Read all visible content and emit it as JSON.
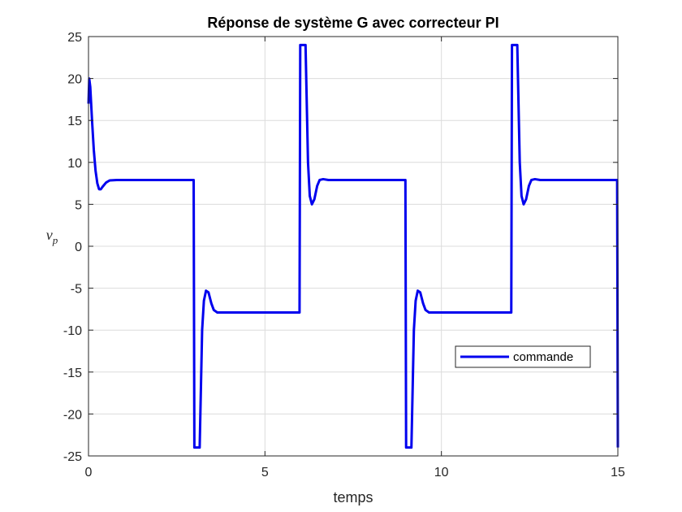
{
  "chart_data": {
    "type": "line",
    "title": "Réponse de système G avec correcteur PI",
    "xlabel": "temps",
    "ylabel_main": "v",
    "ylabel_sub": "p",
    "xlim": [
      0,
      15
    ],
    "ylim": [
      -25,
      25
    ],
    "x_ticks": [
      0,
      5,
      10,
      15
    ],
    "y_ticks": [
      -25,
      -20,
      -15,
      -10,
      -5,
      0,
      5,
      10,
      15,
      20,
      25
    ],
    "grid": true,
    "legend_position": "lower-right",
    "series": [
      {
        "name": "commande",
        "color": "#0000ee",
        "points": [
          [
            0.0,
            17.0
          ],
          [
            0.02,
            20.0
          ],
          [
            0.05,
            19.0
          ],
          [
            0.1,
            15.0
          ],
          [
            0.15,
            11.5
          ],
          [
            0.2,
            9.0
          ],
          [
            0.25,
            7.5
          ],
          [
            0.3,
            6.8
          ],
          [
            0.35,
            6.8
          ],
          [
            0.4,
            7.1
          ],
          [
            0.5,
            7.6
          ],
          [
            0.6,
            7.85
          ],
          [
            0.8,
            7.9
          ],
          [
            1.5,
            7.9
          ],
          [
            2.98,
            7.9
          ],
          [
            3.0,
            -24.0
          ],
          [
            3.15,
            -24.0
          ],
          [
            3.18,
            -18.0
          ],
          [
            3.22,
            -10.0
          ],
          [
            3.27,
            -6.5
          ],
          [
            3.33,
            -5.3
          ],
          [
            3.4,
            -5.5
          ],
          [
            3.48,
            -6.8
          ],
          [
            3.55,
            -7.6
          ],
          [
            3.65,
            -7.9
          ],
          [
            3.8,
            -7.9
          ],
          [
            5.98,
            -7.9
          ],
          [
            6.0,
            24.0
          ],
          [
            6.15,
            24.0
          ],
          [
            6.18,
            18.0
          ],
          [
            6.22,
            10.0
          ],
          [
            6.27,
            6.0
          ],
          [
            6.33,
            5.0
          ],
          [
            6.4,
            5.6
          ],
          [
            6.48,
            7.2
          ],
          [
            6.55,
            7.9
          ],
          [
            6.65,
            8.0
          ],
          [
            6.8,
            7.9
          ],
          [
            8.98,
            7.9
          ],
          [
            9.0,
            -24.0
          ],
          [
            9.15,
            -24.0
          ],
          [
            9.18,
            -18.0
          ],
          [
            9.22,
            -10.0
          ],
          [
            9.27,
            -6.5
          ],
          [
            9.33,
            -5.3
          ],
          [
            9.4,
            -5.5
          ],
          [
            9.48,
            -6.8
          ],
          [
            9.55,
            -7.6
          ],
          [
            9.65,
            -7.9
          ],
          [
            9.8,
            -7.9
          ],
          [
            11.98,
            -7.9
          ],
          [
            12.0,
            24.0
          ],
          [
            12.15,
            24.0
          ],
          [
            12.18,
            18.0
          ],
          [
            12.22,
            10.0
          ],
          [
            12.27,
            6.0
          ],
          [
            12.33,
            5.0
          ],
          [
            12.4,
            5.6
          ],
          [
            12.48,
            7.2
          ],
          [
            12.55,
            7.9
          ],
          [
            12.65,
            8.0
          ],
          [
            12.8,
            7.9
          ],
          [
            14.98,
            7.9
          ],
          [
            15.0,
            -24.0
          ]
        ]
      }
    ]
  }
}
